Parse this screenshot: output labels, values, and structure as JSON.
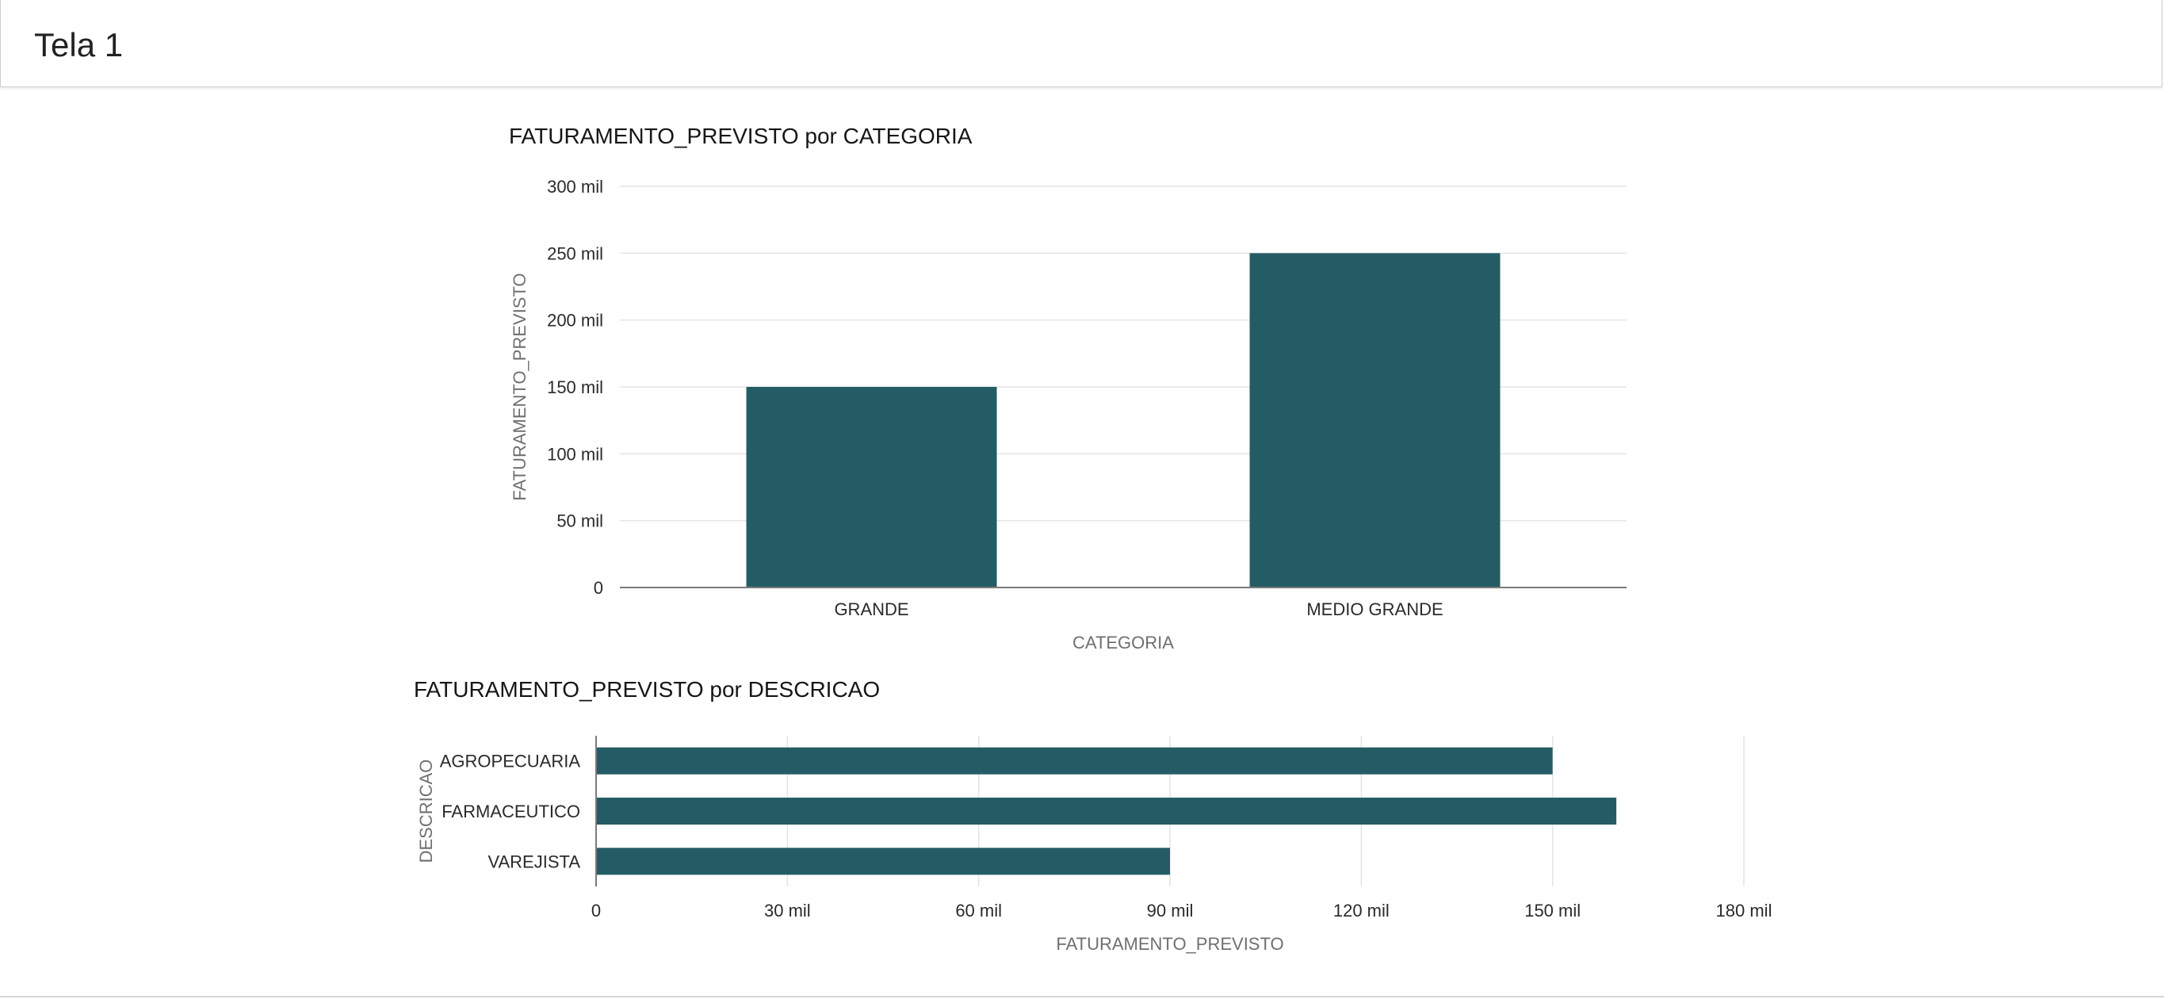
{
  "page": {
    "title": "Tela 1"
  },
  "colors": {
    "bar": "#245c65",
    "grid": "#e4e4e4",
    "axis": "#7a7a7a",
    "axis_title": "#6f6f6f",
    "tick_label": "#2a2a2a"
  },
  "chart_data": [
    {
      "type": "bar",
      "orientation": "vertical",
      "title": "FATURAMENTO_PREVISTO por CATEGORIA",
      "xlabel": "CATEGORIA",
      "ylabel": "FATURAMENTO_PREVISTO",
      "categories": [
        "GRANDE",
        "MEDIO GRANDE"
      ],
      "values": [
        150000,
        250000
      ],
      "ylim": [
        0,
        300000
      ],
      "yticks": [
        0,
        50000,
        100000,
        150000,
        200000,
        250000,
        300000
      ],
      "ytick_labels": [
        "0",
        "50 mil",
        "100 mil",
        "150 mil",
        "200 mil",
        "250 mil",
        "300 mil"
      ],
      "grid": true,
      "legend": "none"
    },
    {
      "type": "bar",
      "orientation": "horizontal",
      "title": "FATURAMENTO_PREVISTO por DESCRICAO",
      "xlabel": "FATURAMENTO_PREVISTO",
      "ylabel": "DESCRICAO",
      "categories": [
        "AGROPECUARIA",
        "FARMACEUTICO",
        "VAREJISTA"
      ],
      "values": [
        150000,
        160000,
        90000
      ],
      "xlim": [
        0,
        180000
      ],
      "xticks": [
        0,
        30000,
        60000,
        90000,
        120000,
        150000,
        180000
      ],
      "xtick_labels": [
        "0",
        "30 mil",
        "60 mil",
        "90 mil",
        "120 mil",
        "150 mil",
        "180 mil"
      ],
      "grid": true,
      "legend": "none"
    }
  ]
}
